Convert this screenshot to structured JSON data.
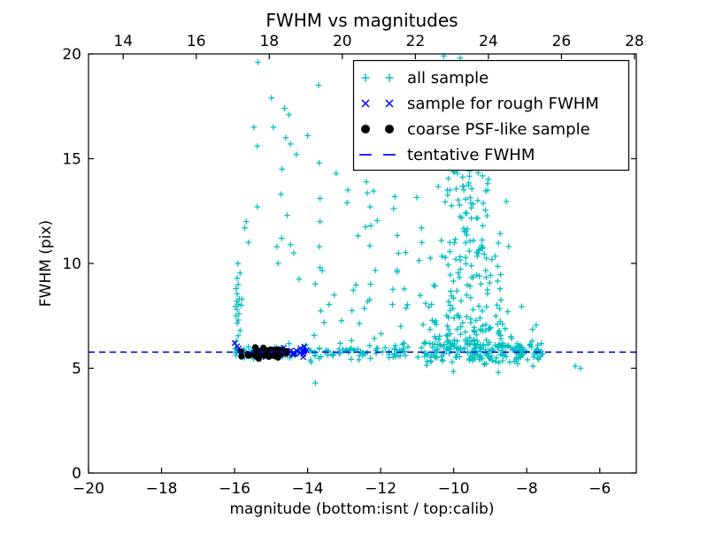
{
  "title": "FWHM vs magnitudes",
  "axes": {
    "xlabel": "magnitude (bottom:isnt / top:calib)",
    "ylabel": "FWHM (pix)",
    "x_bottom": {
      "range": [
        -20,
        -5
      ],
      "ticks": [
        -20,
        -18,
        -16,
        -14,
        -12,
        -10,
        -8,
        -6
      ]
    },
    "x_top": {
      "range": [
        13.05,
        28.05
      ],
      "ticks": [
        14,
        16,
        18,
        20,
        22,
        24,
        26,
        28
      ]
    },
    "y": {
      "range": [
        0,
        20
      ],
      "ticks": [
        0,
        5,
        10,
        15,
        20
      ]
    }
  },
  "colors": {
    "all_sample": "#00bfbf",
    "rough_fwhm": "#0000ff",
    "coarse_psf": "#000000",
    "tentative_line": "#0000ff",
    "frame": "#000000",
    "background": "#ffffff"
  },
  "legend": {
    "items": [
      {
        "label": "all sample",
        "marker": "plus",
        "color": "#00bfbf"
      },
      {
        "label": "sample for rough FWHM",
        "marker": "x",
        "color": "#0000ff"
      },
      {
        "label": "coarse PSF-like sample",
        "marker": "dot",
        "color": "#000000"
      },
      {
        "label": "tentative FWHM",
        "marker": "dash",
        "color": "#0000ff"
      }
    ]
  },
  "chart_data": {
    "type": "scatter",
    "xlim": [
      -20,
      -5
    ],
    "ylim": [
      0,
      20
    ],
    "x_top_lim": [
      13.05,
      28.05
    ],
    "grid": false,
    "legend_position": "upper right",
    "series": [
      {
        "name": "all sample",
        "marker": "plus",
        "color": "#00bfbf",
        "points": [
          [
            -10.27,
            19.9
          ],
          [
            -9.82,
            19.8
          ],
          [
            -15.36,
            19.6
          ],
          [
            -13.7,
            18.5
          ],
          [
            -14.99,
            17.9
          ],
          [
            -14.63,
            17.4
          ],
          [
            -14.51,
            17.1
          ],
          [
            -15.47,
            16.5
          ],
          [
            -14.94,
            16.5
          ],
          [
            -14.6,
            16.0
          ],
          [
            -14.0,
            16.1
          ],
          [
            -14.47,
            15.7
          ],
          [
            -15.38,
            15.6
          ],
          [
            -14.31,
            15.2
          ],
          [
            -13.68,
            14.8
          ],
          [
            -14.7,
            14.5
          ],
          [
            -13.22,
            14.3
          ],
          [
            -12.39,
            13.9
          ],
          [
            -14.73,
            13.3
          ],
          [
            -12.9,
            13.5
          ],
          [
            -13.66,
            13.1
          ],
          [
            -12.92,
            12.9
          ],
          [
            -12.29,
            12.7
          ],
          [
            -13.66,
            12.0
          ],
          [
            -15.68,
            12.0
          ],
          [
            -15.72,
            11.7
          ],
          [
            -14.56,
            12.3
          ],
          [
            -12.27,
            11.8
          ],
          [
            -15.62,
            11.0
          ],
          [
            -14.71,
            11.2
          ],
          [
            -15.38,
            12.7
          ],
          [
            -14.47,
            10.9
          ],
          [
            -14.84,
            10.8
          ],
          [
            -13.68,
            10.8
          ],
          [
            -14.38,
            10.5
          ],
          [
            -14.81,
            10.0
          ],
          [
            -13.66,
            9.8
          ],
          [
            -9.9,
            14.3
          ],
          [
            -10.15,
            14.05
          ],
          [
            -15.93,
            7.15
          ],
          [
            -15.9,
            7.3
          ],
          [
            -15.96,
            7.5
          ],
          [
            -15.88,
            7.6
          ],
          [
            -15.93,
            7.8
          ],
          [
            -15.98,
            7.95
          ],
          [
            -15.9,
            8.05
          ],
          [
            -15.94,
            8.2
          ],
          [
            -15.87,
            8.3
          ],
          [
            -15.93,
            8.55
          ],
          [
            -15.96,
            8.8
          ],
          [
            -15.9,
            9.0
          ],
          [
            -15.93,
            9.3
          ],
          [
            -15.85,
            9.55
          ],
          [
            -15.91,
            10.0
          ],
          [
            -15.9,
            6.55
          ],
          [
            -15.95,
            6.3
          ],
          [
            -15.85,
            6.8
          ],
          [
            -15.8,
            8.3
          ],
          [
            -15.82,
            8.0
          ],
          [
            -13.79,
            4.3
          ],
          [
            -8.78,
            4.8
          ],
          [
            -7.83,
            5.1
          ],
          [
            -6.67,
            5.1
          ],
          [
            -6.53,
            5.0
          ]
        ],
        "clusters": [
          {
            "kind": "hband",
            "mag": [
              -16.0,
              -11.0
            ],
            "fwhm_mean": 5.78,
            "fwhm_sigma": 0.15,
            "n": 130
          },
          {
            "kind": "hband",
            "mag": [
              -11.0,
              -7.55
            ],
            "fwhm_mean": 5.75,
            "fwhm_sigma": 0.27,
            "n": 175
          },
          {
            "kind": "cloud",
            "n": 235,
            "fwhm_base": 6.1,
            "fwhm_span": 8.4,
            "pow": 2.0,
            "mag_center": -9.62,
            "sig_bottom": 0.8,
            "sig_top": 0.3,
            "mag_clamp": [
              -11.4,
              -7.7
            ]
          },
          {
            "kind": "uniform",
            "mag": [
              -12.85,
              -10.85
            ],
            "fwhm": [
              6.3,
              13.5
            ],
            "n": 32
          },
          {
            "kind": "uniform",
            "mag": [
              -14.25,
              -12.9
            ],
            "fwhm": [
              6.4,
              9.9
            ],
            "n": 9
          }
        ]
      },
      {
        "name": "sample for rough FWHM",
        "marker": "x",
        "color": "#0000ff",
        "points": [
          [
            -16.0,
            6.2
          ],
          [
            -15.93,
            6.05
          ],
          [
            -15.88,
            5.95
          ]
        ],
        "clusters": [
          {
            "kind": "hband",
            "mag": [
              -14.68,
              -14.02
            ],
            "fwhm_mean": 5.78,
            "fwhm_sigma": 0.1,
            "n": 22
          },
          {
            "kind": "hband",
            "mag": [
              -15.55,
              -14.7
            ],
            "fwhm_mean": 5.75,
            "fwhm_sigma": 0.09,
            "n": 7
          }
        ]
      },
      {
        "name": "coarse PSF-like sample",
        "marker": "dot",
        "color": "#000000",
        "points": [],
        "clusters": [
          {
            "kind": "blob",
            "mag_center": -15.18,
            "mag_sigma": 0.3,
            "mag_clamp": [
              -15.82,
              -14.58
            ],
            "fwhm_mean": 5.72,
            "fwhm_sigma": 0.12,
            "fwhm_clamp": [
              5.42,
              6.02
            ],
            "n": 60
          }
        ]
      },
      {
        "name": "tentative FWHM",
        "marker": "dash-line",
        "color": "#0000ff",
        "hline_y": 5.77,
        "linestyle": "dashed"
      }
    ]
  }
}
